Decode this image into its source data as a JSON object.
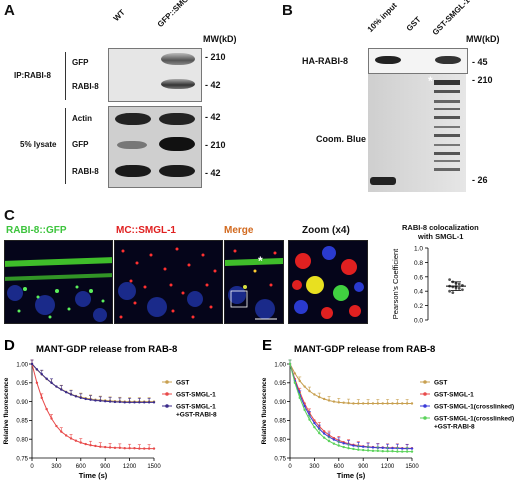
{
  "panelA": {
    "label": "A",
    "lanes": [
      "WT",
      "GFP::SMGL-1"
    ],
    "mw_header": "MW(kD)",
    "ip_group": "IP:RABI-8",
    "lysate_group": "5% lysate",
    "ip_rows": [
      {
        "label": "GFP",
        "mw": "- 210"
      },
      {
        "label": "RABI-8",
        "mw": "- 42"
      }
    ],
    "lysate_rows": [
      {
        "label": "Actin",
        "mw": "- 42"
      },
      {
        "label": "GFP",
        "mw": "- 210"
      },
      {
        "label": "RABI-8",
        "mw": "- 42"
      }
    ]
  },
  "panelB": {
    "label": "B",
    "lanes": [
      "10% input",
      "GST",
      "GST-SMGL-1"
    ],
    "mw_header": "MW(kD)",
    "blot_label": "HA-RABI-8",
    "blot_mw": "- 45",
    "gel_label": "Coom. Blue",
    "gel_mw_top": "- 210",
    "gel_mw_bottom": "- 26",
    "star": "*"
  },
  "panelC": {
    "label": "C",
    "title_green": "RABI-8::GFP",
    "title_red": "MC::SMGL-1",
    "title_merge": "Merge",
    "title_zoom": "Zoom (x4)",
    "star": "*",
    "plot_title_l1": "RABI-8 colocalization",
    "plot_title_l2": "with SMGL-1",
    "ylabel": "Pearson's Coefficient",
    "yticks": [
      "0.0",
      "0.2",
      "0.4",
      "0.6",
      "0.8",
      "1.0"
    ],
    "colors": {
      "green": "#3cc43c",
      "red": "#e02020",
      "merge": "#d2691e",
      "zoom": "#111111"
    }
  },
  "chart_data": [
    {
      "type": "scatter",
      "title": "RABI-8 colocalization with SMGL-1",
      "ylabel": "Pearson's Coefficient",
      "ylim": [
        0,
        1.0
      ],
      "points": [
        0.56,
        0.53,
        0.51,
        0.5,
        0.48,
        0.47,
        0.46,
        0.45,
        0.44,
        0.42,
        0.4,
        0.38
      ],
      "mean": 0.47,
      "sd": 0.06
    },
    {
      "type": "line",
      "panel": "D",
      "title": "MANT-GDP release from RAB-8",
      "xlabel": "Time (s)",
      "ylabel": "Relative fluorescence",
      "xlim": [
        0,
        1500
      ],
      "ylim": [
        0.75,
        1.0
      ],
      "xticks": [
        0,
        300,
        600,
        900,
        1200,
        1500
      ],
      "yticks": [
        0.75,
        0.8,
        0.85,
        0.9,
        0.95,
        1.0
      ],
      "x": [
        0,
        60,
        120,
        180,
        240,
        300,
        360,
        420,
        480,
        540,
        600,
        660,
        720,
        780,
        840,
        900,
        960,
        1020,
        1080,
        1140,
        1200,
        1260,
        1320,
        1380,
        1440,
        1500
      ],
      "series": [
        {
          "name": "GST",
          "color": "#c8a050",
          "values": [
            1.0,
            0.985,
            0.972,
            0.96,
            0.95,
            0.94,
            0.933,
            0.926,
            0.92,
            0.915,
            0.912,
            0.909,
            0.907,
            0.905,
            0.904,
            0.903,
            0.902,
            0.901,
            0.901,
            0.9,
            0.9,
            0.9,
            0.9,
            0.9,
            0.9,
            0.9
          ]
        },
        {
          "name": "GST-SMGL-1",
          "color": "#e84a4a",
          "values": [
            1.0,
            0.95,
            0.91,
            0.88,
            0.855,
            0.835,
            0.82,
            0.81,
            0.802,
            0.796,
            0.791,
            0.787,
            0.784,
            0.782,
            0.78,
            0.779,
            0.778,
            0.777,
            0.777,
            0.776,
            0.776,
            0.776,
            0.775,
            0.775,
            0.775,
            0.775
          ]
        },
        {
          "name": "GST-SMGL-1\n+GST-RABI-8",
          "color": "#3a2a8a",
          "values": [
            1.0,
            0.986,
            0.973,
            0.961,
            0.95,
            0.94,
            0.932,
            0.925,
            0.919,
            0.914,
            0.91,
            0.907,
            0.905,
            0.903,
            0.902,
            0.901,
            0.9,
            0.899,
            0.899,
            0.898,
            0.898,
            0.898,
            0.898,
            0.898,
            0.898,
            0.898
          ]
        }
      ]
    },
    {
      "type": "line",
      "panel": "E",
      "title": "MANT-GDP release from RAB-8",
      "xlabel": "Time (s)",
      "ylabel": "Relative fluorescence",
      "xlim": [
        0,
        1500
      ],
      "ylim": [
        0.75,
        1.0
      ],
      "xticks": [
        0,
        300,
        600,
        900,
        1200,
        1500
      ],
      "yticks": [
        0.75,
        0.8,
        0.85,
        0.9,
        0.95,
        1.0
      ],
      "x": [
        0,
        60,
        120,
        180,
        240,
        300,
        360,
        420,
        480,
        540,
        600,
        660,
        720,
        780,
        840,
        900,
        960,
        1020,
        1080,
        1140,
        1200,
        1260,
        1320,
        1380,
        1440,
        1500
      ],
      "series": [
        {
          "name": "GST",
          "color": "#c8a050",
          "values": [
            1.0,
            0.975,
            0.955,
            0.94,
            0.928,
            0.919,
            0.912,
            0.907,
            0.903,
            0.9,
            0.898,
            0.897,
            0.896,
            0.895,
            0.895,
            0.895,
            0.895,
            0.895,
            0.895,
            0.895,
            0.895,
            0.895,
            0.895,
            0.895,
            0.895,
            0.895
          ]
        },
        {
          "name": "GST-SMGL-1",
          "color": "#e84a4a",
          "values": [
            1.0,
            0.96,
            0.925,
            0.895,
            0.87,
            0.85,
            0.834,
            0.821,
            0.811,
            0.803,
            0.797,
            0.792,
            0.788,
            0.785,
            0.783,
            0.781,
            0.78,
            0.779,
            0.778,
            0.778,
            0.777,
            0.777,
            0.777,
            0.776,
            0.776,
            0.776
          ]
        },
        {
          "name": "GST-SMGL-1(crosslinked)",
          "color": "#3a3ad8",
          "values": [
            1.0,
            0.955,
            0.918,
            0.888,
            0.863,
            0.843,
            0.827,
            0.815,
            0.806,
            0.799,
            0.793,
            0.789,
            0.786,
            0.783,
            0.781,
            0.78,
            0.779,
            0.778,
            0.777,
            0.777,
            0.776,
            0.776,
            0.776,
            0.775,
            0.775,
            0.775
          ]
        },
        {
          "name": "GST-SMGL-1(crosslinked)\n+GST-RABI-8",
          "color": "#5ad25a",
          "values": [
            1.0,
            0.95,
            0.91,
            0.878,
            0.852,
            0.832,
            0.816,
            0.804,
            0.795,
            0.788,
            0.783,
            0.779,
            0.776,
            0.774,
            0.772,
            0.771,
            0.77,
            0.769,
            0.769,
            0.768,
            0.768,
            0.768,
            0.767,
            0.767,
            0.767,
            0.767
          ]
        }
      ]
    }
  ]
}
